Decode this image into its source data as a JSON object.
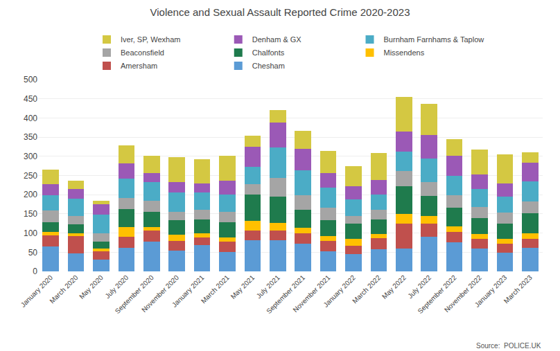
{
  "chart_data": {
    "type": "bar",
    "stacked": true,
    "title": "Violence and Sexual Assault Reported Crime 2020-2023",
    "annotations": [
      "Source:  POLICE.UK"
    ],
    "categories": [
      "January 2020",
      "March 2020",
      "May 2020",
      "July 2020",
      "September 2020",
      "November 2020",
      "January 2021",
      "March 2021",
      "May 2021",
      "July 2021",
      "September 2021",
      "November 2021",
      "January 2022",
      "March 2022",
      "May 2022",
      "July 2022",
      "September 2022",
      "November 2022",
      "January 2023",
      "March 2023"
    ],
    "series": [
      {
        "name": "Chesham",
        "color": "#5B9BD5",
        "values": [
          65,
          47,
          30,
          62,
          78,
          55,
          68,
          50,
          82,
          82,
          72,
          52,
          45,
          58,
          60,
          90,
          75,
          60,
          48,
          62
        ]
      },
      {
        "name": "Amersham",
        "color": "#C0504D",
        "values": [
          28,
          45,
          22,
          28,
          28,
          25,
          20,
          28,
          25,
          25,
          28,
          28,
          22,
          28,
          65,
          35,
          28,
          25,
          25,
          22
        ]
      },
      {
        "name": "Missendens",
        "color": "#FFC000",
        "values": [
          10,
          8,
          8,
          25,
          10,
          15,
          12,
          10,
          25,
          20,
          13,
          12,
          18,
          12,
          25,
          20,
          15,
          12,
          12,
          15
        ]
      },
      {
        "name": "Chalfonts",
        "color": "#1F7B4D",
        "values": [
          25,
          22,
          18,
          48,
          40,
          38,
          35,
          40,
          68,
          68,
          48,
          42,
          40,
          38,
          72,
          52,
          48,
          42,
          40,
          52
        ]
      },
      {
        "name": "Beaconsfield",
        "color": "#A5A5A5",
        "values": [
          30,
          22,
          22,
          28,
          28,
          22,
          25,
          28,
          28,
          48,
          38,
          32,
          20,
          25,
          40,
          35,
          32,
          28,
          28,
          32
        ]
      },
      {
        "name": "Burnham Farnhams & Taplow",
        "color": "#4BACC6",
        "values": [
          40,
          45,
          48,
          50,
          48,
          50,
          45,
          45,
          45,
          80,
          65,
          52,
          42,
          40,
          50,
          62,
          52,
          48,
          42,
          52
        ]
      },
      {
        "name": "Denham & GX",
        "color": "#9B59B6",
        "values": [
          30,
          25,
          28,
          40,
          25,
          28,
          25,
          35,
          52,
          65,
          55,
          38,
          35,
          38,
          52,
          62,
          52,
          38,
          35,
          48
        ]
      },
      {
        "name": "Iver, SP, Wexham",
        "color": "#D4C842",
        "values": [
          38,
          22,
          8,
          48,
          45,
          65,
          62,
          65,
          28,
          32,
          48,
          58,
          52,
          70,
          90,
          80,
          42,
          65,
          75,
          28
        ]
      }
    ],
    "ylim": [
      0,
      500
    ],
    "yticks": [
      0,
      50,
      100,
      150,
      200,
      250,
      300,
      350,
      400,
      450,
      500
    ],
    "grid": true,
    "legend": "top"
  }
}
